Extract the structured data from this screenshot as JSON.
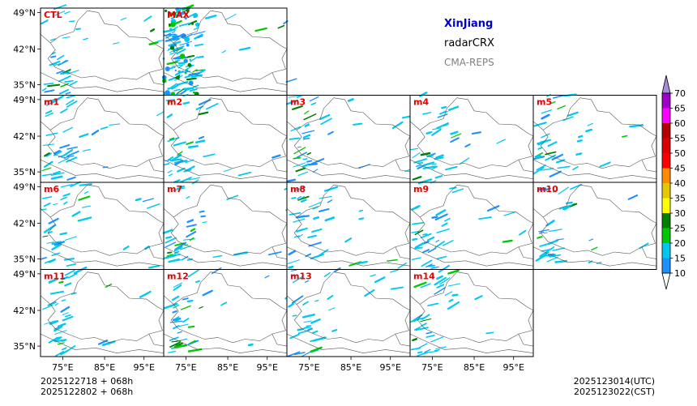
{
  "title": {
    "region": "XinJiang",
    "product": "radarCRX",
    "model": "CMA-REPS",
    "region_color": "#0000cc",
    "model_color": "#808080"
  },
  "panels": [
    {
      "label": "CTL",
      "row": 0,
      "col": 0
    },
    {
      "label": "MAX",
      "row": 0,
      "col": 1
    },
    {
      "label": "m1",
      "row": 1,
      "col": 0
    },
    {
      "label": "m2",
      "row": 1,
      "col": 1
    },
    {
      "label": "m3",
      "row": 1,
      "col": 2
    },
    {
      "label": "m4",
      "row": 1,
      "col": 3
    },
    {
      "label": "m5",
      "row": 1,
      "col": 4
    },
    {
      "label": "m6",
      "row": 2,
      "col": 0
    },
    {
      "label": "m7",
      "row": 2,
      "col": 1
    },
    {
      "label": "m8",
      "row": 2,
      "col": 2
    },
    {
      "label": "m9",
      "row": 2,
      "col": 3
    },
    {
      "label": "m10",
      "row": 2,
      "col": 4
    },
    {
      "label": "m11",
      "row": 3,
      "col": 0
    },
    {
      "label": "m12",
      "row": 3,
      "col": 1
    },
    {
      "label": "m13",
      "row": 3,
      "col": 2
    },
    {
      "label": "m14",
      "row": 3,
      "col": 3
    }
  ],
  "lat_ticks": [
    "49°N",
    "42°N",
    "35°N"
  ],
  "lon_ticks": [
    "75°E",
    "85°E",
    "95°E"
  ],
  "colorbar": {
    "levels": [
      "10",
      "15",
      "20",
      "25",
      "30",
      "35",
      "40",
      "45",
      "50",
      "55",
      "60",
      "65",
      "70"
    ],
    "colors": [
      "#1e90ff",
      "#00c8f0",
      "#00c800",
      "#008000",
      "#ffff00",
      "#e6c800",
      "#ff8c00",
      "#ff0000",
      "#dc0000",
      "#b40000",
      "#ff00ff",
      "#a000c8",
      "#9f7fdf"
    ],
    "under_color": "#ffffff",
    "over_color": "#a78bdc"
  },
  "footer": {
    "init_line1": "2025122718  +  068h",
    "init_line2": "2025122802  +  068h",
    "valid_utc": "2025123014(UTC)",
    "valid_cst": "2025123022(CST)"
  }
}
